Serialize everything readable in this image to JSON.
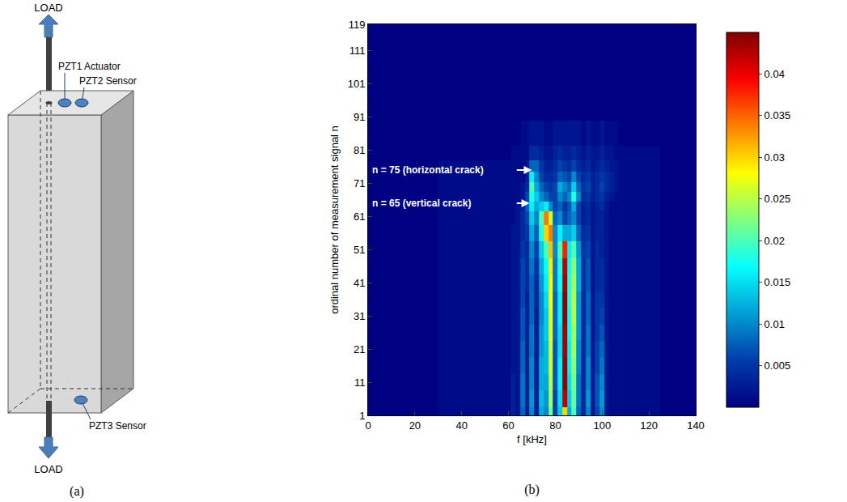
{
  "diagram": {
    "label": "(a)",
    "load_top": "LOAD",
    "load_bottom": "LOAD",
    "sensors": [
      "PZT1 Actuator",
      "PZT2 Sensor",
      "PZT3 Sensor"
    ]
  },
  "chart_data": {
    "type": "heatmap",
    "label": "(b)",
    "x_label": "f [kHz]",
    "y_label": "ordinal number of measurement signal n",
    "color": "Jet",
    "xlim": [
      0,
      140
    ],
    "xticks": [
      0,
      20,
      40,
      60,
      80,
      100,
      120,
      140
    ],
    "ylim": [
      1,
      119
    ],
    "yticks": [
      1,
      11,
      21,
      31,
      41,
      51,
      61,
      71,
      81,
      91,
      101,
      111,
      119
    ],
    "zlim": [
      0,
      0.045
    ],
    "zticks": [
      0.005,
      0.01,
      0.015,
      0.02,
      0.025,
      0.03,
      0.035,
      0.04
    ],
    "annotations": [
      {
        "text": "n = 75 (horizontal crack)",
        "x": 70,
        "y": 75
      },
      {
        "text": "n = 65 (vertical crack)",
        "x": 69,
        "y": 65
      }
    ],
    "x": [
      0,
      60,
      62,
      64,
      66,
      68,
      70,
      72,
      74,
      76,
      78,
      80,
      82,
      84,
      86,
      88,
      90,
      92,
      94,
      96,
      98,
      100,
      102,
      104,
      106,
      108,
      110,
      140
    ],
    "y": [
      1,
      6,
      11,
      16,
      21,
      26,
      31,
      36,
      41,
      46,
      51,
      56,
      61,
      64,
      67,
      70,
      73,
      76,
      80,
      85,
      95,
      119
    ],
    "z": [
      [
        0,
        0.001,
        0.003,
        0.002,
        0.008,
        0.003,
        0.01,
        0.003,
        0.012,
        0.01,
        0.022,
        0.006,
        0.014,
        0.03,
        0.012,
        0.02,
        0.008,
        0.004,
        0.01,
        0.002,
        0.006,
        0.01,
        0.002,
        0.001,
        0.001,
        0.001,
        0.001,
        0
      ],
      [
        0,
        0.001,
        0.003,
        0.002,
        0.009,
        0.003,
        0.011,
        0.003,
        0.013,
        0.011,
        0.024,
        0.006,
        0.015,
        0.042,
        0.014,
        0.021,
        0.009,
        0.004,
        0.011,
        0.002,
        0.007,
        0.011,
        0.002,
        0.001,
        0.001,
        0.001,
        0.001,
        0
      ],
      [
        0,
        0.001,
        0.003,
        0.002,
        0.009,
        0.003,
        0.01,
        0.003,
        0.012,
        0.012,
        0.025,
        0.007,
        0.016,
        0.044,
        0.015,
        0.022,
        0.009,
        0.004,
        0.01,
        0.002,
        0.007,
        0.01,
        0.002,
        0.001,
        0.001,
        0.001,
        0.001,
        0
      ],
      [
        0,
        0.001,
        0.002,
        0.002,
        0.008,
        0.003,
        0.01,
        0.003,
        0.012,
        0.013,
        0.026,
        0.007,
        0.016,
        0.044,
        0.016,
        0.023,
        0.01,
        0.004,
        0.01,
        0.002,
        0.006,
        0.009,
        0.002,
        0.001,
        0.001,
        0.001,
        0.001,
        0
      ],
      [
        0,
        0.001,
        0.002,
        0.002,
        0.008,
        0.003,
        0.009,
        0.003,
        0.011,
        0.013,
        0.026,
        0.007,
        0.015,
        0.043,
        0.016,
        0.024,
        0.01,
        0.004,
        0.009,
        0.002,
        0.006,
        0.008,
        0.002,
        0.001,
        0.001,
        0.001,
        0.001,
        0
      ],
      [
        0,
        0.001,
        0.002,
        0.002,
        0.007,
        0.003,
        0.009,
        0.003,
        0.011,
        0.014,
        0.027,
        0.008,
        0.015,
        0.043,
        0.017,
        0.024,
        0.011,
        0.004,
        0.009,
        0.002,
        0.005,
        0.007,
        0.002,
        0.001,
        0.001,
        0.001,
        0.001,
        0
      ],
      [
        0,
        0.001,
        0.002,
        0.002,
        0.007,
        0.003,
        0.008,
        0.003,
        0.01,
        0.014,
        0.027,
        0.008,
        0.016,
        0.044,
        0.017,
        0.025,
        0.011,
        0.004,
        0.008,
        0.002,
        0.005,
        0.006,
        0.002,
        0.001,
        0.001,
        0.001,
        0.001,
        0
      ],
      [
        0,
        0.001,
        0.002,
        0.002,
        0.006,
        0.003,
        0.008,
        0.004,
        0.01,
        0.015,
        0.028,
        0.008,
        0.016,
        0.044,
        0.018,
        0.025,
        0.011,
        0.004,
        0.008,
        0.002,
        0.005,
        0.005,
        0.002,
        0.001,
        0.001,
        0.001,
        0.001,
        0
      ],
      [
        0,
        0.001,
        0.002,
        0.002,
        0.006,
        0.004,
        0.008,
        0.004,
        0.011,
        0.016,
        0.028,
        0.009,
        0.017,
        0.043,
        0.018,
        0.024,
        0.012,
        0.005,
        0.007,
        0.002,
        0.004,
        0.004,
        0.002,
        0.001,
        0.001,
        0.001,
        0.001,
        0
      ],
      [
        0,
        0.001,
        0.002,
        0.002,
        0.006,
        0.004,
        0.009,
        0.005,
        0.012,
        0.017,
        0.029,
        0.009,
        0.018,
        0.042,
        0.017,
        0.023,
        0.012,
        0.005,
        0.007,
        0.002,
        0.004,
        0.004,
        0.002,
        0.001,
        0.001,
        0.001,
        0.001,
        0
      ],
      [
        0,
        0.001,
        0.002,
        0.002,
        0.005,
        0.004,
        0.01,
        0.006,
        0.014,
        0.02,
        0.031,
        0.01,
        0.02,
        0.038,
        0.016,
        0.02,
        0.011,
        0.005,
        0.006,
        0.002,
        0.004,
        0.003,
        0.002,
        0.001,
        0.001,
        0.001,
        0.001,
        0
      ],
      [
        0,
        0.001,
        0.002,
        0.002,
        0.004,
        0.005,
        0.012,
        0.008,
        0.018,
        0.03,
        0.034,
        0.01,
        0.016,
        0.012,
        0.012,
        0.014,
        0.008,
        0.004,
        0.005,
        0.002,
        0.003,
        0.003,
        0.002,
        0.001,
        0.001,
        0.001,
        0.001,
        0
      ],
      [
        0,
        0.001,
        0.001,
        0.002,
        0.004,
        0.006,
        0.014,
        0.01,
        0.02,
        0.034,
        0.026,
        0.008,
        0.01,
        0.006,
        0.008,
        0.01,
        0.006,
        0.003,
        0.004,
        0.002,
        0.003,
        0.003,
        0.002,
        0.001,
        0.001,
        0.001,
        0.001,
        0
      ],
      [
        0,
        0.001,
        0.001,
        0.002,
        0.003,
        0.008,
        0.016,
        0.012,
        0.014,
        0.016,
        0.01,
        0.006,
        0.008,
        0.005,
        0.007,
        0.012,
        0.006,
        0.003,
        0.004,
        0.002,
        0.003,
        0.004,
        0.002,
        0.001,
        0.001,
        0.001,
        0.001,
        0
      ],
      [
        0,
        0.001,
        0.001,
        0.001,
        0.002,
        0.006,
        0.018,
        0.014,
        0.01,
        0.008,
        0.006,
        0.006,
        0.01,
        0.008,
        0.01,
        0.018,
        0.01,
        0.004,
        0.005,
        0.003,
        0.004,
        0.005,
        0.003,
        0.002,
        0.001,
        0.001,
        0.001,
        0
      ],
      [
        0,
        0.001,
        0.001,
        0.001,
        0.002,
        0.004,
        0.02,
        0.012,
        0.008,
        0.006,
        0.005,
        0.006,
        0.012,
        0.01,
        0.008,
        0.014,
        0.008,
        0.005,
        0.006,
        0.003,
        0.004,
        0.006,
        0.004,
        0.003,
        0.002,
        0.001,
        0.001,
        0
      ],
      [
        0,
        0.001,
        0.001,
        0.001,
        0.001,
        0.003,
        0.016,
        0.01,
        0.006,
        0.004,
        0.004,
        0.005,
        0.008,
        0.007,
        0.006,
        0.01,
        0.006,
        0.004,
        0.005,
        0.003,
        0.004,
        0.005,
        0.004,
        0.003,
        0.002,
        0.001,
        0.001,
        0
      ],
      [
        0,
        0.001,
        0.001,
        0.001,
        0.001,
        0.002,
        0.008,
        0.008,
        0.005,
        0.003,
        0.003,
        0.004,
        0.006,
        0.005,
        0.004,
        0.006,
        0.004,
        0.003,
        0.004,
        0.002,
        0.003,
        0.004,
        0.003,
        0.002,
        0.002,
        0.001,
        0.001,
        0
      ],
      [
        0,
        0,
        0.001,
        0.001,
        0.001,
        0.001,
        0.004,
        0.004,
        0.003,
        0.002,
        0.002,
        0.003,
        0.004,
        0.003,
        0.003,
        0.004,
        0.003,
        0.002,
        0.003,
        0.002,
        0.002,
        0.003,
        0.002,
        0.002,
        0.001,
        0.001,
        0.001,
        0
      ],
      [
        0,
        0,
        0,
        0,
        0.001,
        0.001,
        0.002,
        0.002,
        0.002,
        0.001,
        0.001,
        0.002,
        0.002,
        0.002,
        0.002,
        0.002,
        0.002,
        0.001,
        0.002,
        0.001,
        0.001,
        0.002,
        0.001,
        0.001,
        0.001,
        0,
        0,
        0
      ],
      [
        0,
        0,
        0,
        0,
        0,
        0,
        0,
        0,
        0,
        0,
        0,
        0,
        0,
        0,
        0,
        0,
        0,
        0,
        0,
        0,
        0,
        0,
        0,
        0,
        0,
        0,
        0,
        0
      ],
      [
        0,
        0,
        0,
        0,
        0,
        0,
        0,
        0,
        0,
        0,
        0,
        0,
        0,
        0,
        0,
        0,
        0,
        0,
        0,
        0,
        0,
        0,
        0,
        0,
        0,
        0,
        0,
        0
      ]
    ]
  }
}
